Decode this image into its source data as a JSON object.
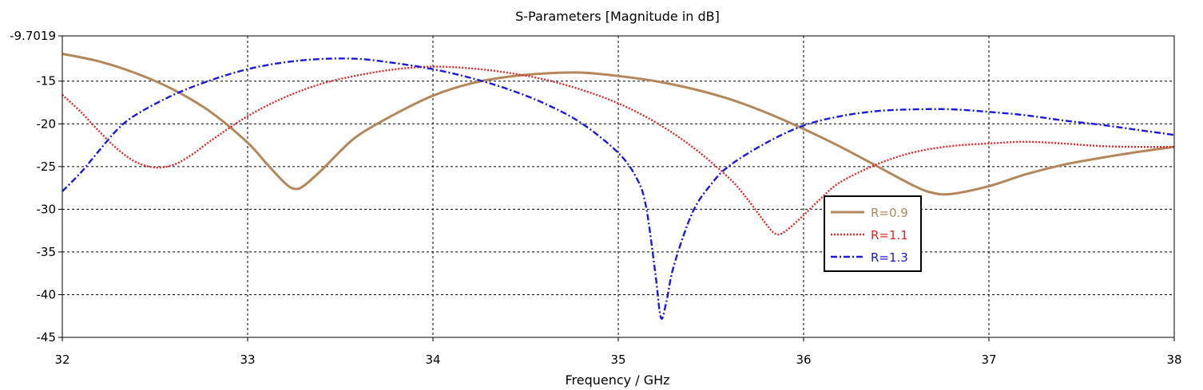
{
  "chart_data": {
    "type": "line",
    "title": "S-Parameters [Magnitude in dB]",
    "xlabel": "Frequency / GHz",
    "ylabel": "",
    "xlim": [
      32,
      38
    ],
    "ylim": [
      -45,
      -9.7019
    ],
    "x_ticks": [
      "32",
      "33",
      "34",
      "35",
      "36",
      "37",
      "38"
    ],
    "y_ticks": [
      "-9.7019",
      "-15",
      "-20",
      "-25",
      "-30",
      "-35",
      "-40",
      "-45"
    ],
    "grid": true,
    "legend_position": "center-right",
    "series": [
      {
        "name": "R=0.9",
        "color": "#b4875a",
        "style": "solid",
        "points": [
          [
            32.0,
            -11.8
          ],
          [
            32.2,
            -12.7
          ],
          [
            32.4,
            -14.1
          ],
          [
            32.6,
            -16.0
          ],
          [
            32.8,
            -18.6
          ],
          [
            33.0,
            -22.2
          ],
          [
            33.1,
            -24.6
          ],
          [
            33.2,
            -26.9
          ],
          [
            33.25,
            -27.6
          ],
          [
            33.3,
            -27.3
          ],
          [
            33.4,
            -25.4
          ],
          [
            33.5,
            -23.2
          ],
          [
            33.6,
            -21.3
          ],
          [
            33.8,
            -18.8
          ],
          [
            34.0,
            -16.7
          ],
          [
            34.2,
            -15.3
          ],
          [
            34.4,
            -14.5
          ],
          [
            34.6,
            -14.1
          ],
          [
            34.8,
            -14.0
          ],
          [
            35.0,
            -14.4
          ],
          [
            35.2,
            -15.0
          ],
          [
            35.4,
            -15.9
          ],
          [
            35.6,
            -17.1
          ],
          [
            35.8,
            -18.7
          ],
          [
            36.0,
            -20.6
          ],
          [
            36.2,
            -22.7
          ],
          [
            36.4,
            -25.0
          ],
          [
            36.6,
            -27.3
          ],
          [
            36.7,
            -28.1
          ],
          [
            36.8,
            -28.2
          ],
          [
            37.0,
            -27.3
          ],
          [
            37.2,
            -25.9
          ],
          [
            37.4,
            -24.8
          ],
          [
            37.6,
            -24.0
          ],
          [
            37.8,
            -23.3
          ],
          [
            38.0,
            -22.7
          ]
        ]
      },
      {
        "name": "R=1.1",
        "color": "#e52626",
        "style": "dotted",
        "points": [
          [
            32.0,
            -16.6
          ],
          [
            32.1,
            -18.6
          ],
          [
            32.2,
            -20.9
          ],
          [
            32.3,
            -23.0
          ],
          [
            32.4,
            -24.5
          ],
          [
            32.5,
            -25.1
          ],
          [
            32.6,
            -24.8
          ],
          [
            32.7,
            -23.6
          ],
          [
            32.8,
            -22.0
          ],
          [
            33.0,
            -19.1
          ],
          [
            33.2,
            -16.9
          ],
          [
            33.4,
            -15.3
          ],
          [
            33.6,
            -14.3
          ],
          [
            33.8,
            -13.6
          ],
          [
            34.0,
            -13.3
          ],
          [
            34.2,
            -13.5
          ],
          [
            34.4,
            -14.0
          ],
          [
            34.6,
            -14.8
          ],
          [
            34.8,
            -16.0
          ],
          [
            35.0,
            -17.6
          ],
          [
            35.2,
            -19.8
          ],
          [
            35.4,
            -22.7
          ],
          [
            35.6,
            -26.4
          ],
          [
            35.7,
            -28.9
          ],
          [
            35.8,
            -31.8
          ],
          [
            35.85,
            -32.9
          ],
          [
            35.9,
            -32.6
          ],
          [
            36.0,
            -30.7
          ],
          [
            36.1,
            -28.6
          ],
          [
            36.2,
            -26.8
          ],
          [
            36.4,
            -24.7
          ],
          [
            36.6,
            -23.3
          ],
          [
            36.8,
            -22.6
          ],
          [
            37.0,
            -22.3
          ],
          [
            37.2,
            -22.1
          ],
          [
            37.4,
            -22.3
          ],
          [
            37.6,
            -22.6
          ],
          [
            37.8,
            -22.7
          ],
          [
            38.0,
            -22.7
          ]
        ]
      },
      {
        "name": "R=1.3",
        "color": "#1a1adc",
        "style": "dashdot",
        "points": [
          [
            32.0,
            -27.9
          ],
          [
            32.1,
            -25.7
          ],
          [
            32.2,
            -23.1
          ],
          [
            32.3,
            -20.6
          ],
          [
            32.4,
            -18.9
          ],
          [
            32.6,
            -16.6
          ],
          [
            32.8,
            -14.9
          ],
          [
            33.0,
            -13.6
          ],
          [
            33.2,
            -12.8
          ],
          [
            33.4,
            -12.4
          ],
          [
            33.6,
            -12.4
          ],
          [
            33.8,
            -12.9
          ],
          [
            34.0,
            -13.6
          ],
          [
            34.2,
            -14.6
          ],
          [
            34.4,
            -15.9
          ],
          [
            34.6,
            -17.6
          ],
          [
            34.8,
            -19.9
          ],
          [
            35.0,
            -23.4
          ],
          [
            35.1,
            -26.4
          ],
          [
            35.15,
            -29.7
          ],
          [
            35.2,
            -37.5
          ],
          [
            35.23,
            -42.7
          ],
          [
            35.26,
            -40.8
          ],
          [
            35.3,
            -36.6
          ],
          [
            35.4,
            -30.4
          ],
          [
            35.5,
            -27.1
          ],
          [
            35.6,
            -24.9
          ],
          [
            35.8,
            -22.2
          ],
          [
            36.0,
            -20.2
          ],
          [
            36.2,
            -19.1
          ],
          [
            36.4,
            -18.5
          ],
          [
            36.6,
            -18.3
          ],
          [
            36.8,
            -18.3
          ],
          [
            37.0,
            -18.6
          ],
          [
            37.2,
            -19.0
          ],
          [
            37.4,
            -19.6
          ],
          [
            37.6,
            -20.1
          ],
          [
            37.8,
            -20.7
          ],
          [
            38.0,
            -21.3
          ]
        ]
      }
    ]
  }
}
